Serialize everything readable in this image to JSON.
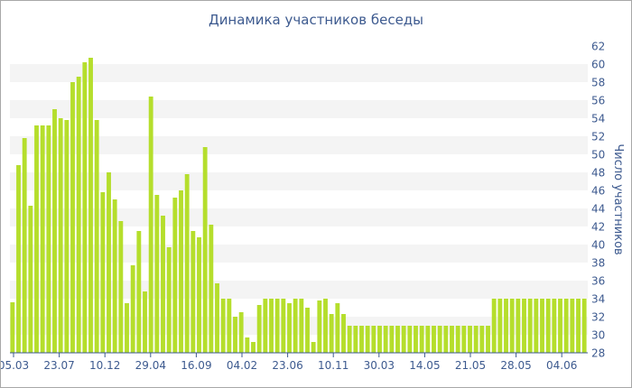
{
  "chart_data": {
    "type": "bar",
    "title": "Динамика участников беседы",
    "xlabel": "",
    "ylabel": "Число участников",
    "ylim": [
      28,
      62
    ],
    "yticks": [
      28,
      30,
      32,
      34,
      36,
      38,
      40,
      42,
      44,
      46,
      48,
      50,
      52,
      54,
      56,
      58,
      60,
      62
    ],
    "xtick_labels": [
      "05.03",
      "23.07",
      "10.12",
      "29.04",
      "16.09",
      "04.02",
      "23.06",
      "10.11",
      "30.03",
      "14.05",
      "21.05",
      "28.05",
      "04.06"
    ],
    "grid": "alternating horizontal bands",
    "bar_color": "#b5de2c",
    "values": [
      33.6,
      48.8,
      51.8,
      44.3,
      53.2,
      53.2,
      53.2,
      55.0,
      54.0,
      53.8,
      58.0,
      58.6,
      60.2,
      60.7,
      53.8,
      45.8,
      48.0,
      45.0,
      42.6,
      33.5,
      37.7,
      41.5,
      34.8,
      56.4,
      45.5,
      43.2,
      39.7,
      45.2,
      46.0,
      47.8,
      41.5,
      40.8,
      50.8,
      42.2,
      35.7,
      34.0,
      34.0,
      32.0,
      32.5,
      29.7,
      29.2,
      33.3,
      34.0,
      34.0,
      34.0,
      34.0,
      33.5,
      34.0,
      34.0,
      33.0,
      29.2,
      33.8,
      34.0,
      32.3,
      33.5,
      32.3,
      31.0,
      31.0,
      31.0,
      31.0,
      31.0,
      31.0,
      31.0,
      31.0,
      31.0,
      31.0,
      31.0,
      31.0,
      31.0,
      31.0,
      31.0,
      31.0,
      31.0,
      31.0,
      31.0,
      31.0,
      31.0,
      31.0,
      31.0,
      31.0,
      34.0,
      34.0,
      34.0,
      34.0,
      34.0,
      34.0,
      34.0,
      34.0,
      34.0,
      34.0,
      34.0,
      34.0,
      34.0,
      34.0,
      34.0,
      34.0
    ]
  }
}
